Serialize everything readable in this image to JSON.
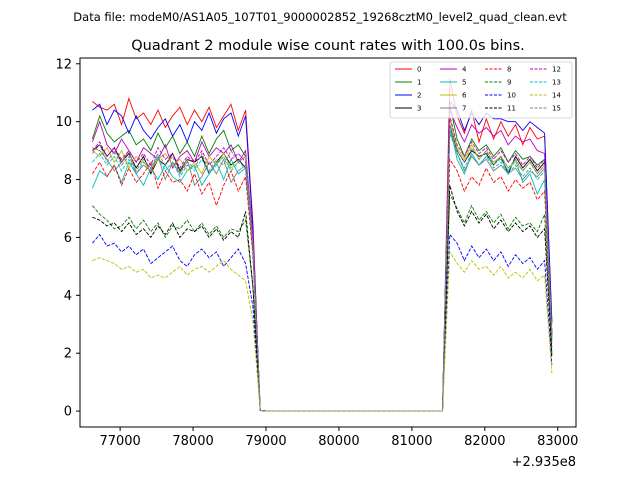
{
  "header_text": "Data file: modeM0/AS1A05_107T01_9000002852_19268cztM0_level2_quad_clean.evt",
  "chart_data": {
    "type": "line",
    "title": "Quadrant 2 module wise count rates with 100.0s bins.",
    "xlabel": "",
    "ylabel": "",
    "x_offset_label": "+2.935e8",
    "xlim": [
      76450,
      83250
    ],
    "ylim": [
      -0.55,
      12.2
    ],
    "xticks": [
      77000,
      78000,
      79000,
      80000,
      81000,
      82000,
      83000
    ],
    "yticks": [
      0,
      2,
      4,
      6,
      8,
      10,
      12
    ],
    "grid": false,
    "legend_position": "top-right",
    "x": [
      76620,
      76720,
      76820,
      76920,
      77020,
      77120,
      77220,
      77320,
      77420,
      77520,
      77620,
      77720,
      77820,
      77920,
      78020,
      78120,
      78220,
      78320,
      78420,
      78520,
      78620,
      78720,
      78820,
      78920,
      79020,
      79120,
      81420,
      81520,
      81620,
      81720,
      81820,
      81920,
      82020,
      82120,
      82220,
      82320,
      82420,
      82520,
      82620,
      82720,
      82820,
      82920
    ],
    "series": [
      {
        "name": "0",
        "color": "#ff0000",
        "dash": "solid",
        "values": [
          10.7,
          10.5,
          10.4,
          10.6,
          9.9,
          10.8,
          10.1,
          10.3,
          9.9,
          10.4,
          9.8,
          10.2,
          10.5,
          9.9,
          10.4,
          10.0,
          10.5,
          9.8,
          10.2,
          10.6,
          9.7,
          10.4,
          6.5,
          0.02,
          0,
          0,
          0,
          11.5,
          10.2,
          9.6,
          10.4,
          9.3,
          10.1,
          9.4,
          10.0,
          9.5,
          9.9,
          9.2,
          9.8,
          9.4,
          9.5,
          3.0
        ]
      },
      {
        "name": "1",
        "color": "#008000",
        "dash": "solid",
        "values": [
          9.4,
          10.2,
          9.6,
          9.3,
          9.5,
          9.7,
          9.2,
          9.4,
          9.0,
          9.6,
          9.1,
          9.5,
          8.9,
          9.3,
          8.8,
          9.5,
          8.9,
          9.4,
          9.7,
          9.0,
          9.2,
          8.8,
          6.0,
          0.02,
          0,
          0,
          0,
          10.6,
          9.4,
          8.8,
          9.4,
          9.0,
          9.2,
          8.8,
          9.1,
          8.6,
          9.0,
          8.7,
          8.8,
          8.5,
          8.7,
          2.7
        ]
      },
      {
        "name": "2",
        "color": "#0000ff",
        "dash": "solid",
        "values": [
          10.4,
          10.6,
          9.9,
          10.4,
          10.2,
          9.6,
          10.2,
          9.7,
          9.4,
          9.8,
          10.1,
          9.5,
          9.9,
          9.3,
          10.0,
          9.7,
          10.3,
          9.6,
          10.1,
          10.3,
          9.5,
          10.2,
          6.3,
          0.02,
          0,
          0,
          0,
          10.7,
          10.4,
          9.7,
          10.3,
          9.9,
          10.3,
          10.1,
          10.1,
          10.0,
          10.0,
          9.7,
          10.0,
          9.8,
          9.6,
          3.1
        ]
      },
      {
        "name": "3",
        "color": "#000000",
        "dash": "solid",
        "values": [
          9.0,
          9.2,
          8.8,
          9.1,
          8.6,
          8.9,
          8.4,
          8.8,
          8.2,
          8.7,
          8.5,
          8.9,
          8.3,
          8.7,
          8.6,
          8.8,
          8.2,
          8.6,
          8.9,
          8.5,
          8.7,
          8.4,
          5.7,
          0.02,
          0,
          0,
          0,
          9.9,
          9.0,
          8.6,
          9.0,
          8.8,
          8.9,
          8.5,
          8.8,
          8.2,
          8.8,
          8.4,
          8.7,
          8.3,
          8.6,
          2.6
        ]
      },
      {
        "name": "4",
        "color": "#bf00bf",
        "dash": "solid",
        "values": [
          9.3,
          10.0,
          9.2,
          8.9,
          9.4,
          9.0,
          8.6,
          9.1,
          8.9,
          8.7,
          9.2,
          8.4,
          8.8,
          9.0,
          8.6,
          9.3,
          8.8,
          9.1,
          8.9,
          9.2,
          8.6,
          9.0,
          6.0,
          0.02,
          0,
          0,
          0,
          10.4,
          9.8,
          9.3,
          9.9,
          9.6,
          9.8,
          9.5,
          9.7,
          9.2,
          9.5,
          9.3,
          9.4,
          9.0,
          8.9,
          2.6
        ]
      },
      {
        "name": "5",
        "color": "#00bfbf",
        "dash": "solid",
        "values": [
          7.7,
          8.3,
          8.1,
          8.5,
          7.9,
          8.6,
          8.2,
          7.8,
          8.4,
          8.0,
          8.5,
          8.1,
          7.9,
          8.3,
          8.5,
          7.8,
          8.2,
          8.6,
          8.0,
          8.7,
          8.2,
          8.4,
          5.6,
          0.02,
          0,
          0,
          0,
          9.9,
          8.7,
          8.2,
          8.9,
          8.5,
          8.8,
          8.6,
          8.7,
          8.3,
          8.7,
          7.9,
          8.2,
          7.5,
          8.0,
          2.4
        ]
      },
      {
        "name": "6",
        "color": "#bfbf00",
        "dash": "solid",
        "values": [
          9.0,
          8.8,
          9.1,
          8.6,
          9.0,
          8.4,
          8.8,
          8.6,
          8.3,
          8.7,
          8.9,
          8.5,
          8.7,
          8.3,
          8.6,
          8.2,
          8.8,
          8.5,
          8.9,
          8.4,
          8.6,
          8.8,
          5.8,
          0.02,
          0,
          0,
          0,
          10.1,
          9.1,
          8.7,
          9.2,
          8.7,
          9.0,
          8.6,
          8.8,
          8.4,
          8.6,
          8.3,
          8.6,
          8.2,
          8.5,
          2.5
        ]
      },
      {
        "name": "7",
        "color": "#808080",
        "dash": "solid",
        "values": [
          9.1,
          9.0,
          8.7,
          8.3,
          8.6,
          9.0,
          8.2,
          8.5,
          8.3,
          8.8,
          8.0,
          8.6,
          8.2,
          8.7,
          7.8,
          8.1,
          8.6,
          8.2,
          8.7,
          7.9,
          8.3,
          8.5,
          5.5,
          0.02,
          0,
          0,
          0,
          9.7,
          8.9,
          8.3,
          8.8,
          8.5,
          8.7,
          8.3,
          8.5,
          8.2,
          8.4,
          8.0,
          8.3,
          8.1,
          8.4,
          2.5
        ]
      },
      {
        "name": "8",
        "color": "#ff0000",
        "dash": "dashed",
        "values": [
          8.2,
          8.6,
          8.1,
          8.5,
          7.8,
          8.4,
          7.9,
          8.2,
          8.6,
          7.7,
          8.3,
          7.9,
          8.0,
          7.6,
          8.2,
          7.5,
          7.9,
          7.1,
          7.8,
          8.3,
          7.6,
          8.1,
          5.4,
          0.02,
          0,
          0,
          0,
          8.7,
          8.3,
          7.6,
          8.1,
          7.8,
          8.4,
          7.9,
          8.1,
          7.6,
          8.0,
          7.7,
          7.9,
          7.3,
          7.6,
          2.2
        ]
      },
      {
        "name": "9",
        "color": "#008000",
        "dash": "dashed",
        "values": [
          7.1,
          6.8,
          6.6,
          6.3,
          6.4,
          6.7,
          6.3,
          6.6,
          6.2,
          6.5,
          6.0,
          6.4,
          6.3,
          6.6,
          6.2,
          6.5,
          6.1,
          6.4,
          6.0,
          6.3,
          6.2,
          6.6,
          4.3,
          0.02,
          0,
          0,
          0,
          7.5,
          7.0,
          6.5,
          7.1,
          6.6,
          6.9,
          6.5,
          6.8,
          6.3,
          6.7,
          6.4,
          6.5,
          6.2,
          6.8,
          2.0
        ]
      },
      {
        "name": "10",
        "color": "#0000ff",
        "dash": "dashed",
        "values": [
          5.8,
          6.1,
          5.7,
          5.8,
          5.5,
          5.7,
          5.4,
          5.6,
          5.1,
          5.3,
          5.5,
          5.7,
          5.2,
          5.0,
          5.4,
          5.6,
          5.3,
          5.5,
          5.0,
          5.3,
          5.6,
          5.1,
          3.6,
          0.02,
          0,
          0,
          0,
          6.1,
          5.8,
          5.2,
          5.7,
          5.3,
          5.6,
          5.2,
          5.5,
          5.0,
          5.4,
          5.1,
          5.3,
          4.9,
          5.2,
          1.6
        ]
      },
      {
        "name": "11",
        "color": "#000000",
        "dash": "dashed",
        "values": [
          6.7,
          6.6,
          6.4,
          6.5,
          6.2,
          6.5,
          6.1,
          6.3,
          6.0,
          6.4,
          6.1,
          6.5,
          6.0,
          6.3,
          6.2,
          6.4,
          6.0,
          6.3,
          5.9,
          6.2,
          6.0,
          6.9,
          4.3,
          0.02,
          0,
          0,
          0,
          7.8,
          6.9,
          6.4,
          6.9,
          6.5,
          6.8,
          6.3,
          6.6,
          6.2,
          6.5,
          6.2,
          6.4,
          6.0,
          6.3,
          1.9
        ]
      },
      {
        "name": "12",
        "color": "#bf00bf",
        "dash": "dashed",
        "values": [
          9.0,
          9.3,
          8.8,
          9.1,
          8.7,
          9.0,
          8.6,
          8.9,
          8.5,
          9.1,
          8.7,
          8.9,
          8.4,
          8.8,
          8.6,
          9.0,
          8.5,
          8.8,
          9.1,
          8.7,
          8.9,
          8.6,
          5.9,
          0.02,
          0,
          0,
          0,
          10.2,
          9.2,
          8.8,
          9.3,
          8.9,
          9.1,
          8.7,
          9.0,
          8.6,
          8.9,
          8.5,
          8.8,
          8.4,
          8.7,
          2.6
        ]
      },
      {
        "name": "13",
        "color": "#00bfbf",
        "dash": "dashed",
        "values": [
          8.6,
          8.9,
          8.5,
          8.8,
          8.3,
          8.7,
          8.2,
          8.6,
          8.4,
          8.8,
          8.3,
          8.6,
          8.1,
          8.5,
          8.3,
          8.7,
          8.2,
          8.5,
          8.8,
          8.3,
          8.6,
          8.4,
          5.7,
          0.02,
          0,
          0,
          0,
          9.6,
          8.9,
          8.4,
          8.9,
          8.5,
          8.8,
          8.4,
          8.6,
          8.2,
          8.5,
          8.1,
          8.4,
          8.0,
          8.3,
          2.5
        ]
      },
      {
        "name": "14",
        "color": "#bfbf00",
        "dash": "dashed",
        "values": [
          5.2,
          5.3,
          5.2,
          5.1,
          4.9,
          5.0,
          4.8,
          4.9,
          4.6,
          4.7,
          4.6,
          4.8,
          5.0,
          4.7,
          4.9,
          5.0,
          4.8,
          5.0,
          5.2,
          4.9,
          4.7,
          4.5,
          3.1,
          0.02,
          0,
          0,
          0,
          5.5,
          5.1,
          4.8,
          5.2,
          4.9,
          5.0,
          4.7,
          5.0,
          4.6,
          4.8,
          4.6,
          4.9,
          4.5,
          4.7,
          1.3
        ]
      },
      {
        "name": "15",
        "color": "#808080",
        "dash": "dashed",
        "values": [
          8.9,
          9.2,
          8.6,
          9.0,
          8.5,
          8.8,
          8.3,
          8.7,
          8.4,
          8.9,
          8.5,
          8.8,
          8.2,
          8.6,
          8.4,
          8.9,
          8.3,
          8.7,
          8.5,
          9.0,
          8.6,
          8.8,
          5.8,
          0.02,
          0,
          0,
          0,
          9.9,
          9.0,
          8.6,
          9.1,
          8.7,
          9.0,
          8.5,
          8.8,
          8.4,
          8.7,
          8.3,
          8.6,
          8.2,
          8.5,
          2.5
        ]
      }
    ]
  }
}
